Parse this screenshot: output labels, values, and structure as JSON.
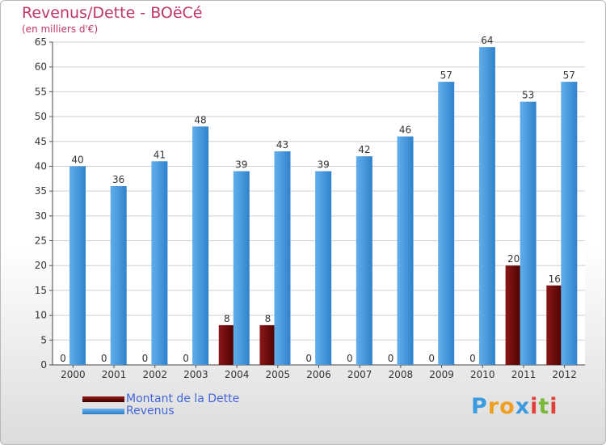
{
  "header": {
    "title": "Revenus/Dette - BOëCé",
    "subtitle": "(en milliers d'€)"
  },
  "chart_data": {
    "type": "bar",
    "title": "Revenus/Dette - BOëCé",
    "ylabel": "(en milliers d'€)",
    "xlabel": "",
    "ylim": [
      0,
      65
    ],
    "yticks": [
      "0",
      "5",
      "10",
      "15",
      "20",
      "25",
      "30",
      "35",
      "40",
      "45",
      "50",
      "55",
      "60",
      "65"
    ],
    "grid": true,
    "categories": [
      "2000",
      "2001",
      "2002",
      "2003",
      "2004",
      "2005",
      "2006",
      "2007",
      "2008",
      "2009",
      "2010",
      "2011",
      "2012"
    ],
    "series": [
      {
        "name": "Montant de la Dette",
        "color": "#6e0a0a",
        "values": [
          0,
          0,
          0,
          0,
          8,
          8,
          0,
          0,
          0,
          0,
          0,
          20,
          16
        ]
      },
      {
        "name": "Revenus",
        "color": "#3d92dc",
        "values": [
          40,
          36,
          41,
          48,
          39,
          43,
          39,
          42,
          46,
          57,
          64,
          53,
          57
        ]
      }
    ]
  },
  "legend": {
    "items": [
      {
        "label": "Montant de la Dette",
        "color": "#6e0a0a"
      },
      {
        "label": "Revenus",
        "color": "#3d92dc"
      }
    ]
  },
  "logo": {
    "text": "Proxiti",
    "letters": [
      {
        "ch": "P",
        "color": "#3a9be0"
      },
      {
        "ch": "r",
        "color": "#f0a020"
      },
      {
        "ch": "o",
        "color": "#f0a020"
      },
      {
        "ch": "x",
        "color": "#3a9be0"
      },
      {
        "ch": "i",
        "color": "#e0403a"
      },
      {
        "ch": "t",
        "color": "#7ab83a"
      },
      {
        "ch": "i",
        "color": "#e0403a"
      }
    ]
  }
}
